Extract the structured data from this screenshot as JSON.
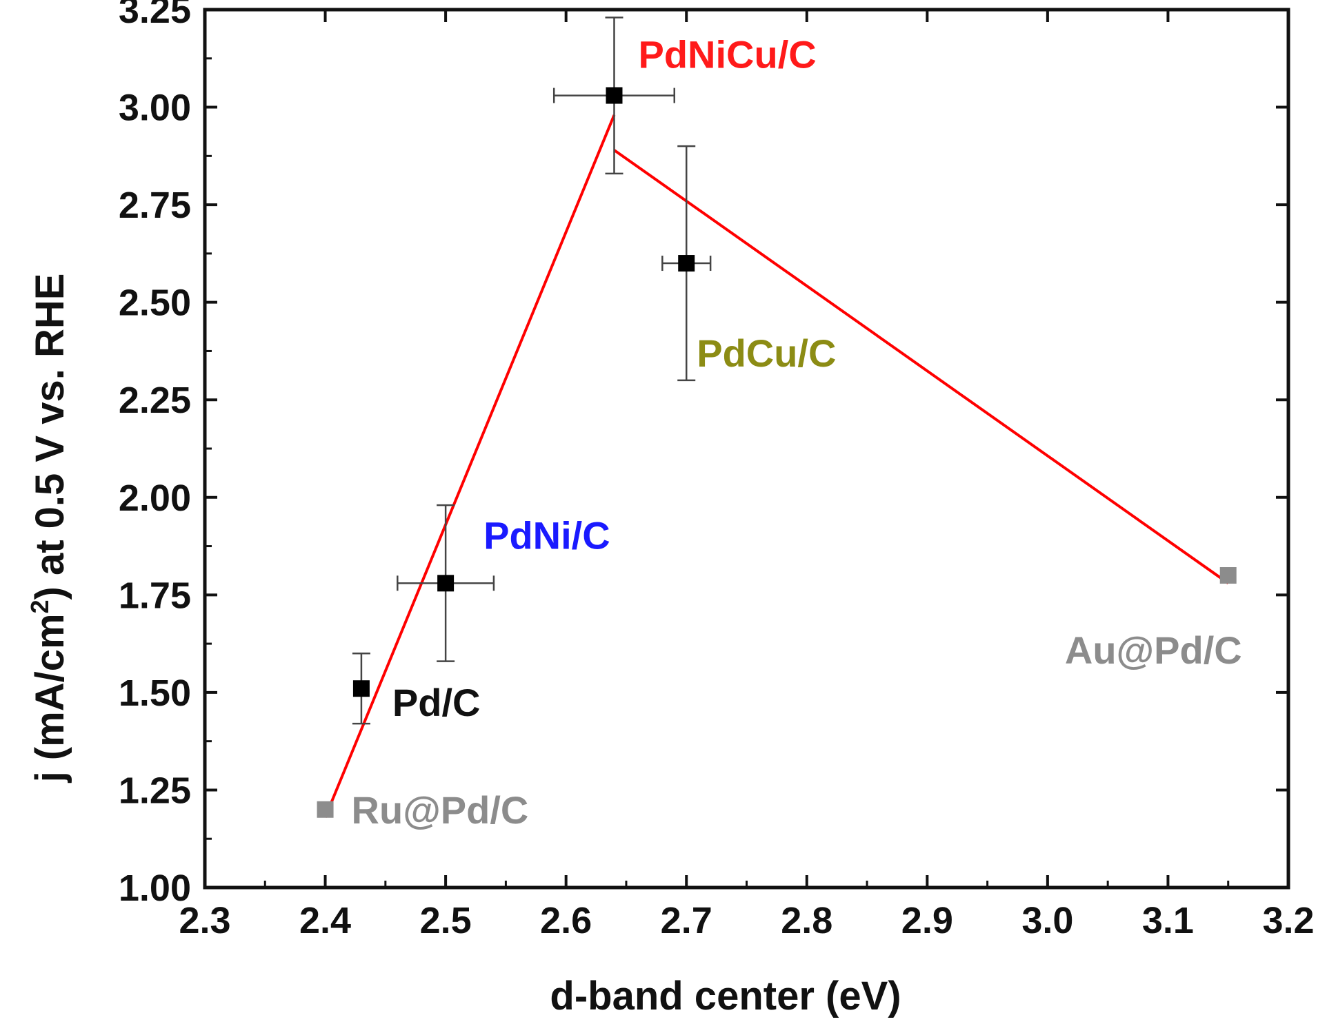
{
  "chart_data": {
    "type": "scatter",
    "title": "",
    "xlabel": "d-band center (eV)",
    "ylabel_prefix": "j (mA/cm",
    "ylabel_superscript": "2",
    "ylabel_suffix": ") at 0.5 V vs. RHE",
    "xlim": [
      2.3,
      3.2
    ],
    "ylim": [
      1.0,
      3.25
    ],
    "x_ticks": [
      2.3,
      2.4,
      2.5,
      2.6,
      2.7,
      2.8,
      2.9,
      3.0,
      3.1,
      3.2
    ],
    "x_tick_labels": [
      "2.3",
      "2.4",
      "2.5",
      "2.6",
      "2.7",
      "2.8",
      "2.9",
      "3.0",
      "3.1",
      "3.2"
    ],
    "y_ticks": [
      1.0,
      1.25,
      1.5,
      1.75,
      2.0,
      2.25,
      2.5,
      2.75,
      3.0,
      3.25
    ],
    "y_tick_labels": [
      "1.00",
      "1.25",
      "1.50",
      "1.75",
      "2.00",
      "2.25",
      "2.50",
      "2.75",
      "3.00",
      "3.25"
    ],
    "grid": false,
    "points": [
      {
        "label": "Ru@Pd/C",
        "x": 2.4,
        "y": 1.2,
        "xerr": 0,
        "yerr": 0,
        "marker_color": "#8c8c8c",
        "label_color": "#8c8c8c"
      },
      {
        "label": "Pd/C",
        "x": 2.43,
        "y": 1.51,
        "xerr": 0,
        "yerr": 0.09,
        "marker_color": "#000000",
        "label_color": "#111111"
      },
      {
        "label": "PdNi/C",
        "x": 2.5,
        "y": 1.78,
        "xerr": 0.04,
        "yerr": 0.2,
        "marker_color": "#000000",
        "label_color": "#1a1aff"
      },
      {
        "label": "PdNiCu/C",
        "x": 2.64,
        "y": 3.03,
        "xerr": 0.05,
        "yerr": 0.2,
        "marker_color": "#000000",
        "label_color": "#ff1a1a"
      },
      {
        "label": "PdCu/C",
        "x": 2.7,
        "y": 2.6,
        "xerr": 0.02,
        "yerr": 0.3,
        "marker_color": "#000000",
        "label_color": "#8c8c14"
      },
      {
        "label": "Au@Pd/C",
        "x": 3.15,
        "y": 1.8,
        "xerr": 0,
        "yerr": 0,
        "marker_color": "#8c8c8c",
        "label_color": "#8c8c8c"
      }
    ],
    "trend_lines": [
      {
        "name": "",
        "color": "#ff0000",
        "x": [
          2.4,
          2.64
        ],
        "y": [
          1.18,
          2.98
        ]
      },
      {
        "name": "",
        "color": "#ff0000",
        "x": [
          2.64,
          3.15
        ],
        "y": [
          2.89,
          1.78
        ]
      }
    ]
  }
}
